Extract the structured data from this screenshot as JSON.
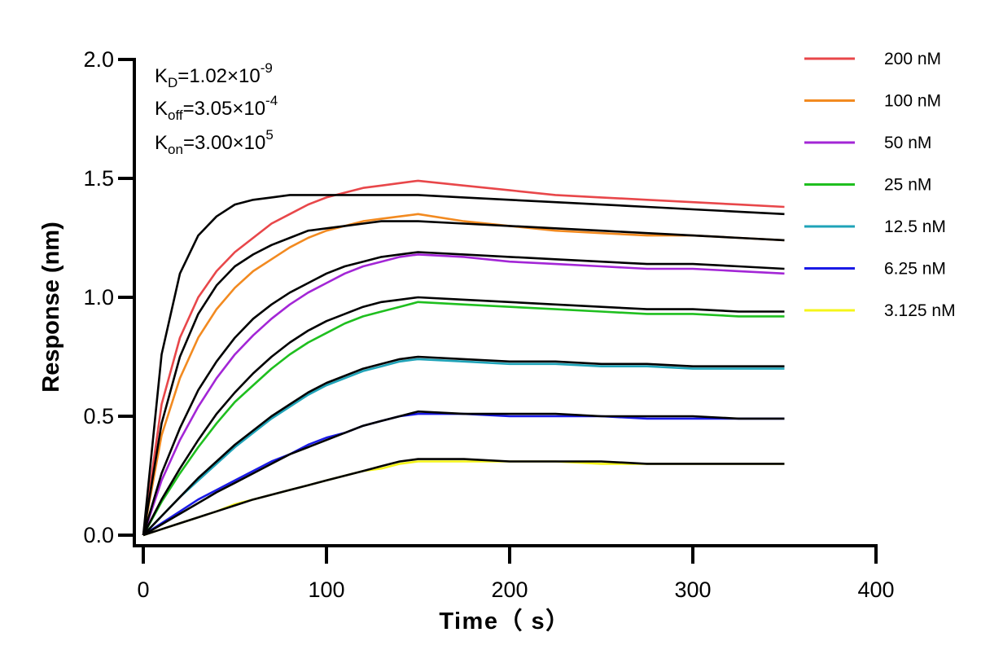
{
  "chart_data": {
    "type": "line",
    "xlabel": "Time（ s）",
    "ylabel": "Response (nm)",
    "xlim": [
      0,
      400
    ],
    "ylim": [
      0,
      2.0
    ],
    "x_ticks": [
      "0",
      "100",
      "200",
      "300",
      "400"
    ],
    "y_ticks": [
      "0.0",
      "0.5",
      "1.0",
      "1.5",
      "2.0"
    ],
    "grid": false,
    "legend_position": "right",
    "annotations": {
      "kd": {
        "base": "K",
        "sub": "D",
        "value": "=1.02×10",
        "exp": "-9"
      },
      "koff": {
        "base": "K",
        "sub": "off",
        "value": "=3.05×10",
        "exp": "-4"
      },
      "kon": {
        "base": "K",
        "sub": "on",
        "value": "=3.00×10",
        "exp": "5"
      }
    },
    "x": [
      0,
      10,
      20,
      30,
      40,
      50,
      60,
      70,
      80,
      90,
      100,
      110,
      120,
      130,
      140,
      150,
      175,
      200,
      225,
      250,
      275,
      300,
      325,
      350
    ],
    "series": [
      {
        "name": "200 nM",
        "color": "#e8474a",
        "values": [
          0,
          0.55,
          0.83,
          1.0,
          1.11,
          1.19,
          1.25,
          1.31,
          1.35,
          1.39,
          1.42,
          1.44,
          1.46,
          1.47,
          1.48,
          1.49,
          1.47,
          1.45,
          1.43,
          1.42,
          1.41,
          1.4,
          1.39,
          1.38
        ]
      },
      {
        "name": "100 nM",
        "color": "#f28a20",
        "values": [
          0,
          0.42,
          0.66,
          0.83,
          0.95,
          1.04,
          1.11,
          1.16,
          1.21,
          1.25,
          1.28,
          1.3,
          1.32,
          1.33,
          1.34,
          1.35,
          1.32,
          1.3,
          1.28,
          1.27,
          1.26,
          1.26,
          1.25,
          1.24
        ]
      },
      {
        "name": "50 nM",
        "color": "#a326d6",
        "values": [
          0,
          0.23,
          0.4,
          0.54,
          0.66,
          0.76,
          0.84,
          0.91,
          0.97,
          1.02,
          1.06,
          1.1,
          1.13,
          1.15,
          1.17,
          1.18,
          1.17,
          1.15,
          1.14,
          1.13,
          1.12,
          1.12,
          1.11,
          1.1
        ]
      },
      {
        "name": "25 nM",
        "color": "#1fbf1f",
        "values": [
          0,
          0.14,
          0.26,
          0.37,
          0.47,
          0.56,
          0.63,
          0.7,
          0.76,
          0.81,
          0.85,
          0.89,
          0.92,
          0.94,
          0.96,
          0.98,
          0.97,
          0.96,
          0.95,
          0.94,
          0.93,
          0.93,
          0.92,
          0.92
        ]
      },
      {
        "name": "12.5 nM",
        "color": "#1fa3b8",
        "values": [
          0,
          0.08,
          0.16,
          0.23,
          0.3,
          0.37,
          0.43,
          0.49,
          0.54,
          0.59,
          0.63,
          0.66,
          0.69,
          0.71,
          0.73,
          0.74,
          0.73,
          0.72,
          0.72,
          0.71,
          0.71,
          0.7,
          0.7,
          0.7
        ]
      },
      {
        "name": "6.25 nM",
        "color": "#1a1ae6",
        "values": [
          0,
          0.05,
          0.1,
          0.15,
          0.19,
          0.23,
          0.27,
          0.31,
          0.34,
          0.38,
          0.41,
          0.43,
          0.46,
          0.48,
          0.5,
          0.51,
          0.51,
          0.5,
          0.5,
          0.5,
          0.49,
          0.49,
          0.49,
          0.49
        ]
      },
      {
        "name": "3.125 nM",
        "color": "#f5f51a",
        "values": [
          0,
          0.025,
          0.05,
          0.075,
          0.1,
          0.13,
          0.15,
          0.17,
          0.19,
          0.21,
          0.23,
          0.25,
          0.27,
          0.28,
          0.3,
          0.31,
          0.31,
          0.31,
          0.31,
          0.3,
          0.3,
          0.3,
          0.3,
          0.3
        ]
      }
    ],
    "fit_series": [
      {
        "color": "#000000",
        "values": [
          0,
          0.76,
          1.1,
          1.26,
          1.34,
          1.39,
          1.41,
          1.42,
          1.43,
          1.43,
          1.43,
          1.43,
          1.43,
          1.43,
          1.43,
          1.43,
          1.42,
          1.41,
          1.4,
          1.39,
          1.38,
          1.37,
          1.36,
          1.35
        ]
      },
      {
        "color": "#000000",
        "values": [
          0,
          0.47,
          0.75,
          0.93,
          1.05,
          1.13,
          1.18,
          1.22,
          1.25,
          1.28,
          1.29,
          1.3,
          1.31,
          1.32,
          1.32,
          1.32,
          1.31,
          1.3,
          1.29,
          1.28,
          1.27,
          1.26,
          1.25,
          1.24
        ]
      },
      {
        "color": "#000000",
        "values": [
          0,
          0.26,
          0.45,
          0.61,
          0.73,
          0.83,
          0.91,
          0.97,
          1.02,
          1.06,
          1.1,
          1.13,
          1.15,
          1.17,
          1.18,
          1.19,
          1.18,
          1.17,
          1.16,
          1.15,
          1.14,
          1.14,
          1.13,
          1.12
        ]
      },
      {
        "color": "#000000",
        "values": [
          0,
          0.15,
          0.28,
          0.4,
          0.51,
          0.6,
          0.68,
          0.75,
          0.81,
          0.86,
          0.9,
          0.93,
          0.96,
          0.98,
          0.99,
          1.0,
          0.99,
          0.98,
          0.97,
          0.96,
          0.95,
          0.95,
          0.94,
          0.94
        ]
      },
      {
        "color": "#000000",
        "values": [
          0,
          0.08,
          0.16,
          0.24,
          0.31,
          0.38,
          0.44,
          0.5,
          0.55,
          0.6,
          0.64,
          0.67,
          0.7,
          0.72,
          0.74,
          0.75,
          0.74,
          0.73,
          0.73,
          0.72,
          0.72,
          0.71,
          0.71,
          0.71
        ]
      },
      {
        "color": "#000000",
        "values": [
          0,
          0.045,
          0.09,
          0.135,
          0.18,
          0.22,
          0.26,
          0.3,
          0.34,
          0.37,
          0.4,
          0.43,
          0.46,
          0.48,
          0.5,
          0.52,
          0.51,
          0.51,
          0.51,
          0.5,
          0.5,
          0.5,
          0.49,
          0.49
        ]
      },
      {
        "color": "#000000",
        "values": [
          0,
          0.025,
          0.05,
          0.075,
          0.1,
          0.125,
          0.15,
          0.17,
          0.19,
          0.21,
          0.23,
          0.25,
          0.27,
          0.29,
          0.31,
          0.32,
          0.32,
          0.31,
          0.31,
          0.31,
          0.3,
          0.3,
          0.3,
          0.3
        ]
      }
    ]
  }
}
